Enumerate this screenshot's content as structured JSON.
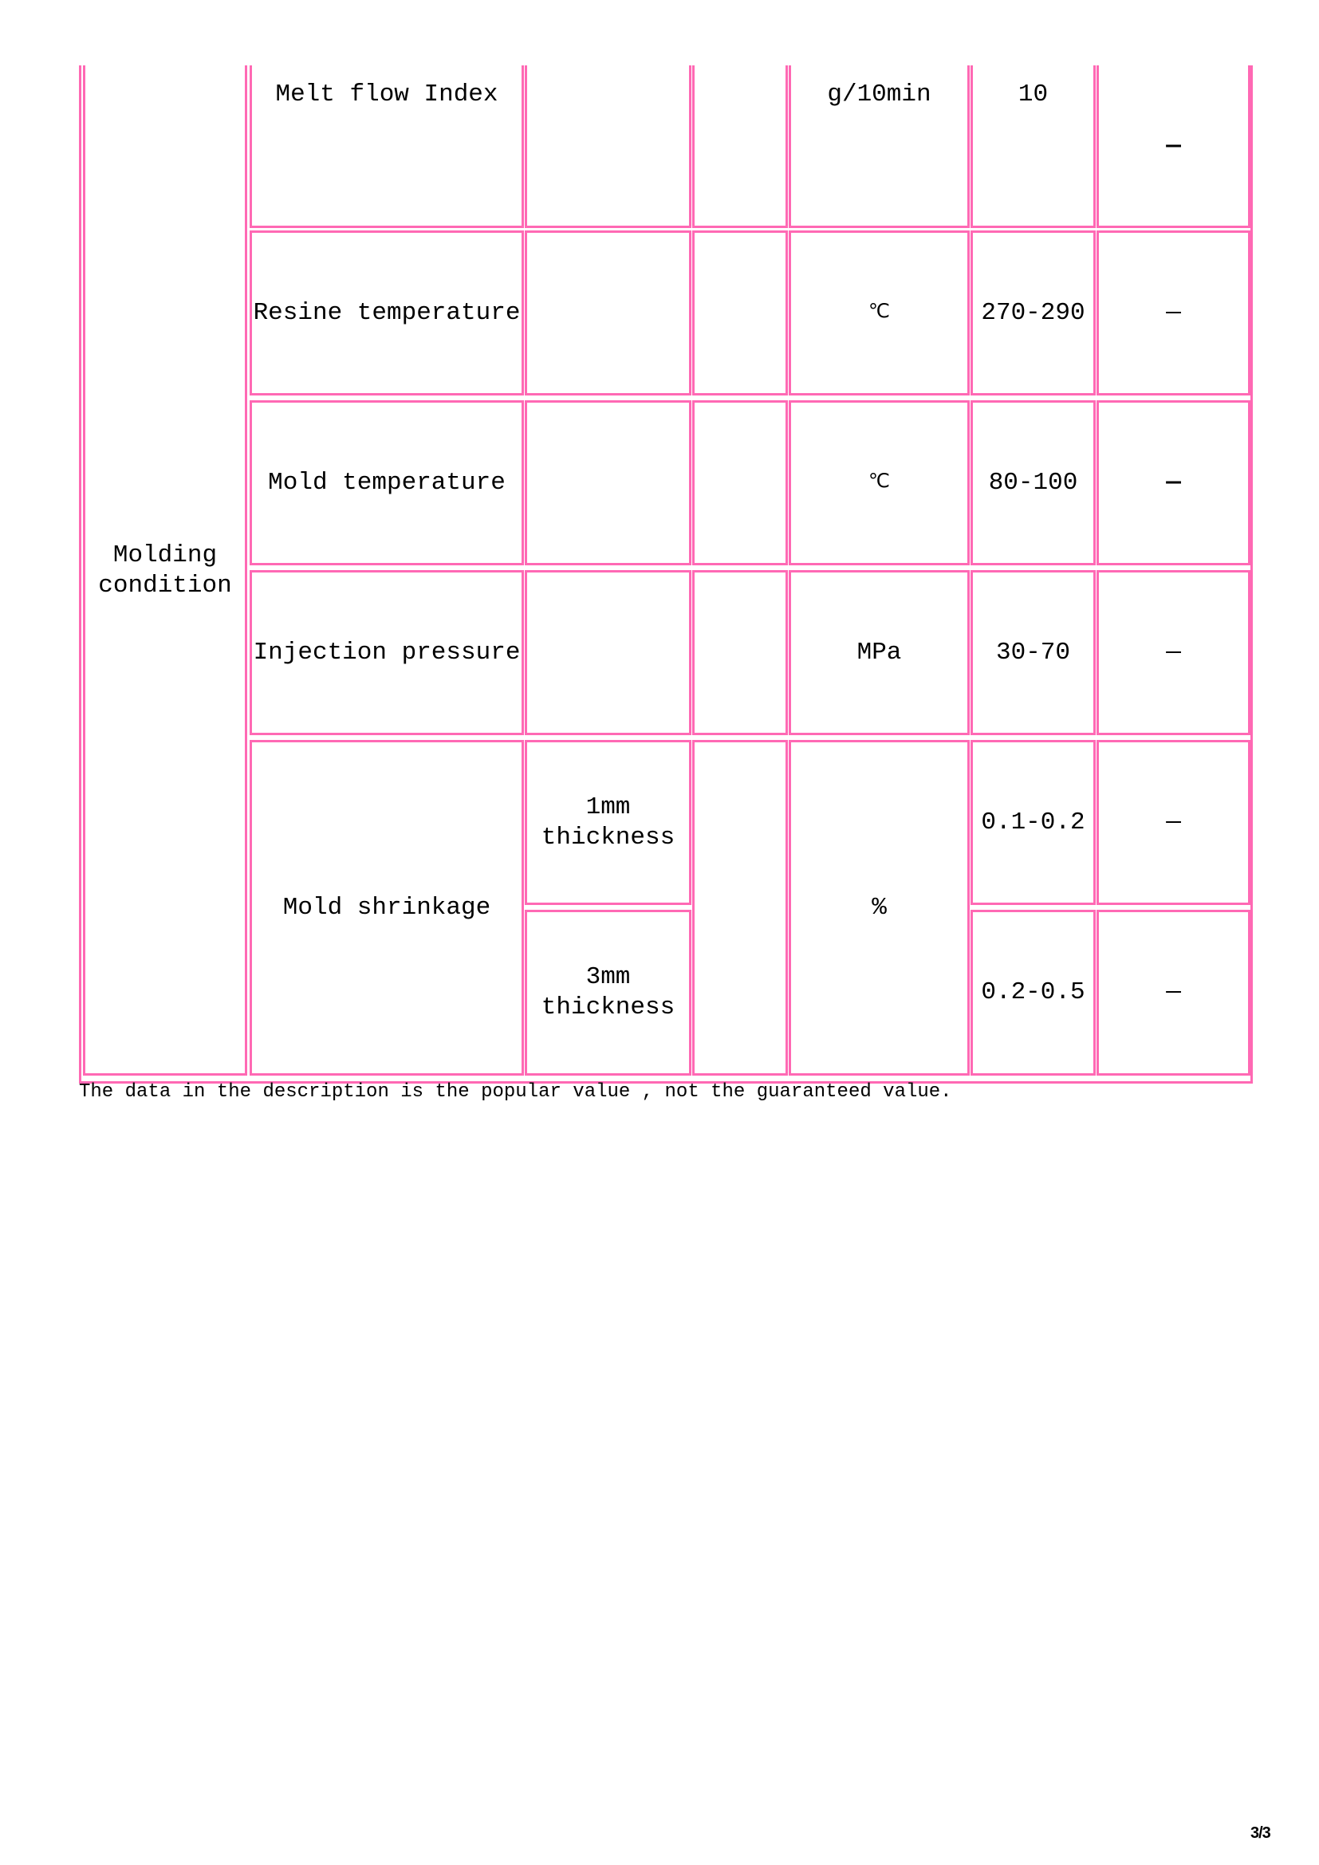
{
  "table": {
    "group_label": "Molding\ncondition",
    "rows": [
      {
        "property": "Melt flow Index",
        "condition": "",
        "method": "",
        "unit": "g/10min",
        "value": "10",
        "remark": "—"
      },
      {
        "property": "Resine temperature",
        "condition": "",
        "method": "",
        "unit": "℃",
        "value": "270-290",
        "remark": "—"
      },
      {
        "property": "Mold temperature",
        "condition": "",
        "method": "",
        "unit": "℃",
        "value": "80-100",
        "remark": "—"
      },
      {
        "property": "Injection pressure",
        "condition": "",
        "method": "",
        "unit": "MPa",
        "value": "30-70",
        "remark": "—"
      },
      {
        "property": "Mold shrinkage",
        "unit": "%",
        "method": "",
        "sub": [
          {
            "condition": "1mm\nthickness",
            "value": "0.1-0.2",
            "remark": "—"
          },
          {
            "condition": "3mm\nthickness",
            "value": "0.2-0.5",
            "remark": "—"
          }
        ]
      }
    ],
    "border_color": "#ff69b4"
  },
  "footer_note": "The data in the description is the popular value , not the guaranteed value.",
  "page_number": "3/3"
}
